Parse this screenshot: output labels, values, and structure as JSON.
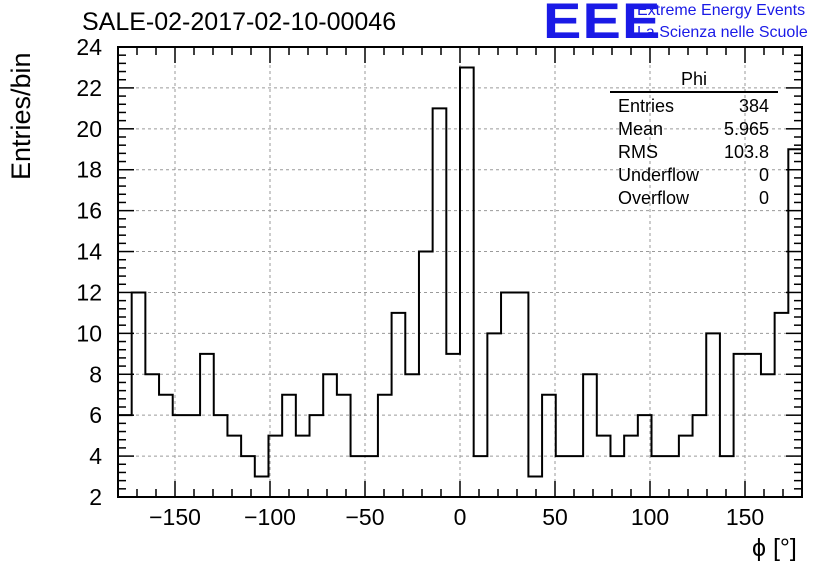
{
  "chart_data": {
    "type": "histogram",
    "title": "SALE-02-2017-02-10-00046",
    "xlabel": "ϕ [°]",
    "ylabel": "Entries/bin",
    "xlim": [
      -180,
      180
    ],
    "ylim": [
      2,
      24
    ],
    "grid": true,
    "bin_width": 7.2,
    "bin_edges_start": -180,
    "values": [
      6,
      12,
      8,
      7,
      6,
      6,
      9,
      6,
      5,
      4,
      3,
      5,
      7,
      5,
      6,
      8,
      7,
      4,
      4,
      7,
      11,
      8,
      14,
      21,
      9,
      23,
      4,
      10,
      12,
      12,
      3,
      7,
      4,
      4,
      8,
      5,
      4,
      5,
      6,
      4,
      4,
      5,
      6,
      10,
      4,
      9,
      9,
      8,
      11,
      19
    ],
    "x_ticks": [
      "−150",
      "−100",
      "−50",
      "0",
      "50",
      "100",
      "150"
    ],
    "x_tick_values": [
      -150,
      -100,
      -50,
      0,
      50,
      100,
      150
    ],
    "y_ticks": [
      "2",
      "4",
      "6",
      "8",
      "10",
      "12",
      "14",
      "16",
      "18",
      "20",
      "22",
      "24"
    ],
    "y_tick_values": [
      2,
      4,
      6,
      8,
      10,
      12,
      14,
      16,
      18,
      20,
      22,
      24
    ],
    "line_color": "#000000"
  },
  "stats_box": {
    "name": "Phi",
    "rows": [
      {
        "label": "Entries",
        "value": "384"
      },
      {
        "label": "Mean",
        "value": "5.965"
      },
      {
        "label": "RMS",
        "value": "103.8"
      },
      {
        "label": "Underflow",
        "value": "0"
      },
      {
        "label": "Overflow",
        "value": "0"
      }
    ]
  },
  "logo": {
    "letters": "EEE",
    "line1": "Extreme Energy Events",
    "line2": "La Scienza nelle Scuole",
    "color": "#1a1ae6"
  }
}
